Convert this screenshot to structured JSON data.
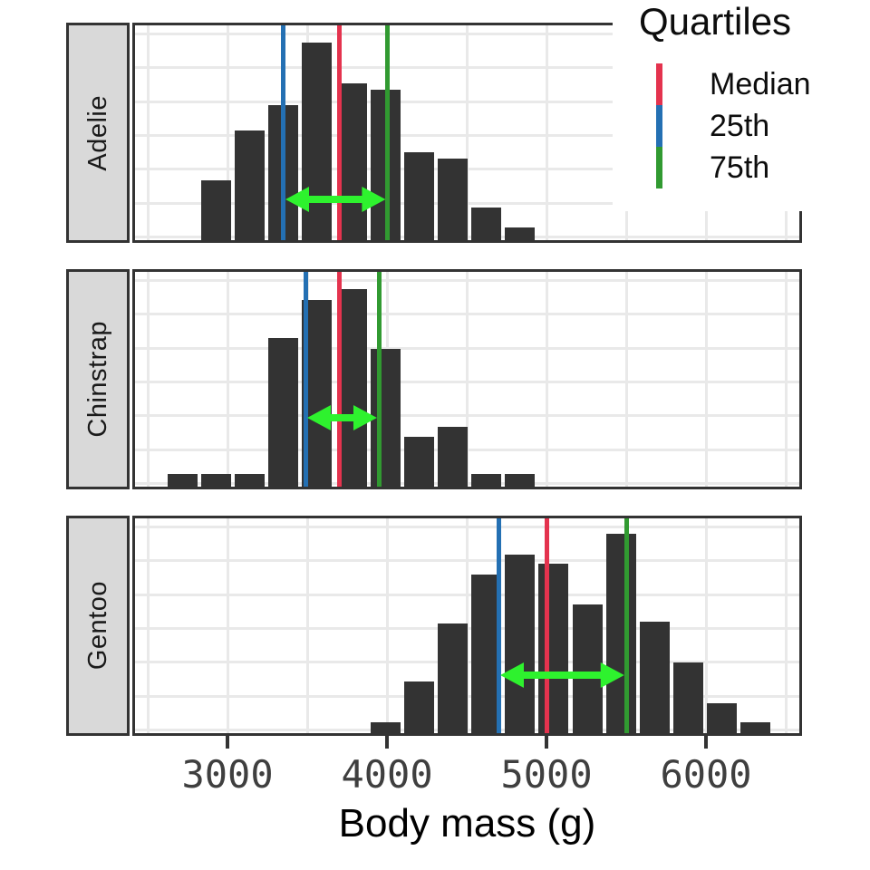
{
  "legend": {
    "title": "Quartiles",
    "items": [
      {
        "label": "Median",
        "color": "#e4334e"
      },
      {
        "label": "25th",
        "color": "#2470b3"
      },
      {
        "label": "75th",
        "color": "#319a31"
      }
    ]
  },
  "x_axis": {
    "title": "Body mass (g)",
    "tick_values": [
      3000,
      4000,
      5000,
      6000
    ],
    "tick_labels": [
      "3000",
      "4000",
      "5000",
      "6000"
    ]
  },
  "colors": {
    "bar": "#333333",
    "panel_border": "#333333",
    "strip_bg": "#d9d9d9",
    "grid": "#e9e9e9",
    "median_line": "#e4334e",
    "q25_line": "#2470b3",
    "q75_line": "#319a31",
    "arrow": "#2ef22e",
    "tick_text": "#3f3f3f",
    "background": "#ffffff"
  },
  "chart_data": {
    "type": "bar",
    "subtype": "faceted-histogram",
    "xlabel": "Body mass (g)",
    "ylabel": "",
    "x_domain_g": [
      2420,
      6585
    ],
    "grid_v_g": [
      2500,
      3000,
      3500,
      4000,
      4500,
      5000,
      5500,
      6000,
      6500
    ],
    "bin_width_g": 211,
    "legend_title": "Quartiles",
    "facets": [
      {
        "species": "Adelie",
        "bin_centers_g": [
          2930,
          3140,
          3350,
          3560,
          3780,
          3990,
          4200,
          4410,
          4620,
          4830
        ],
        "rel_heights": [
          0.28,
          0.51,
          0.63,
          0.92,
          0.73,
          0.7,
          0.41,
          0.38,
          0.15,
          0.06
        ],
        "quartiles_g": {
          "q25": 3350,
          "median": 3700,
          "q75": 4000
        },
        "arrow_y_frac": 0.81
      },
      {
        "species": "Chinstrap",
        "bin_centers_g": [
          2720,
          2930,
          3140,
          3350,
          3560,
          3780,
          3990,
          4200,
          4410,
          4620,
          4830
        ],
        "rel_heights": [
          0.06,
          0.06,
          0.06,
          0.69,
          0.87,
          0.92,
          0.64,
          0.23,
          0.28,
          0.06,
          0.06
        ],
        "quartiles_g": {
          "q25": 3490,
          "median": 3700,
          "q75": 3950
        },
        "arrow_y_frac": 0.68
      },
      {
        "species": "Gentoo",
        "bin_centers_g": [
          3990,
          4200,
          4410,
          4620,
          4830,
          5040,
          5260,
          5470,
          5680,
          5890,
          6100,
          6310
        ],
        "rel_heights": [
          0.05,
          0.24,
          0.51,
          0.74,
          0.83,
          0.79,
          0.6,
          0.93,
          0.52,
          0.33,
          0.14,
          0.05
        ],
        "quartiles_g": {
          "q25": 4700,
          "median": 5000,
          "q75": 5500
        },
        "arrow_y_frac": 0.73
      }
    ]
  }
}
